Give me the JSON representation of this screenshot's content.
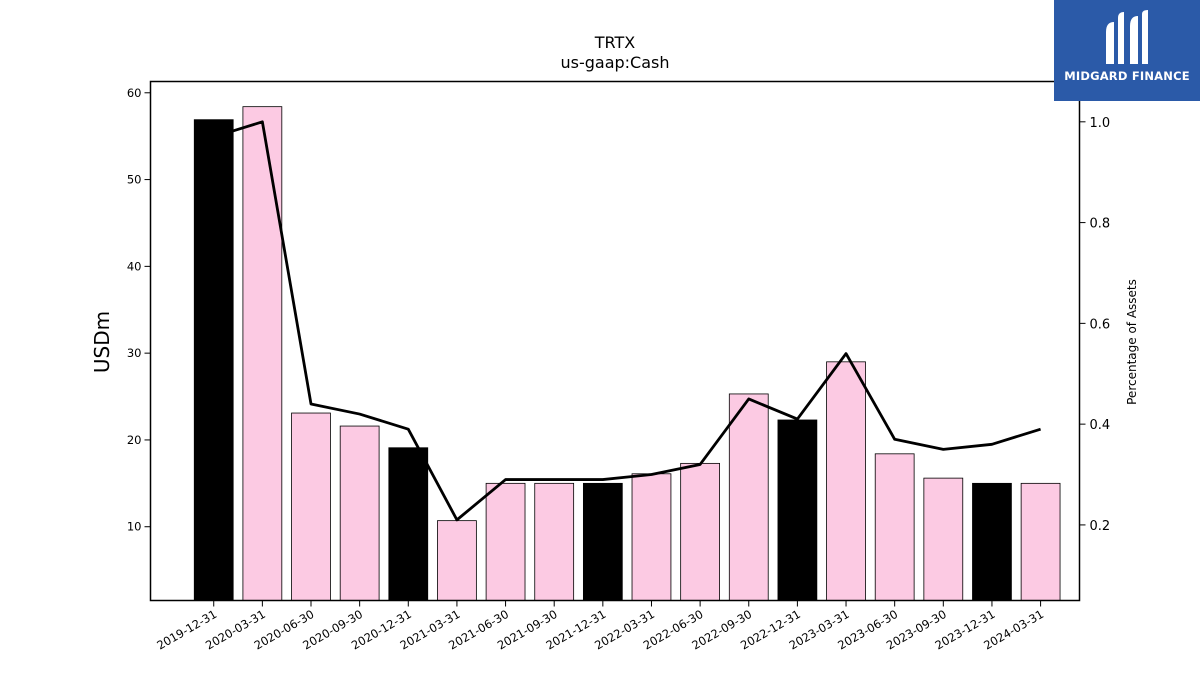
{
  "chart_data": {
    "type": "bar",
    "title": "TRTX",
    "subtitle": "us-gaap:Cash",
    "ylabel": "USDm",
    "y2label": "Percentage of Assets",
    "categories": [
      "2019-12-31",
      "2020-03-31",
      "2020-06-30",
      "2020-09-30",
      "2020-12-31",
      "2021-03-31",
      "2021-06-30",
      "2021-09-30",
      "2021-12-31",
      "2022-03-31",
      "2022-06-30",
      "2022-09-30",
      "2022-12-31",
      "2023-03-31",
      "2023-06-30",
      "2023-09-30",
      "2023-12-31",
      "2024-03-31"
    ],
    "values": [
      56.9,
      58.4,
      23.1,
      21.6,
      19.1,
      10.7,
      15.0,
      15.0,
      15.0,
      16.1,
      17.3,
      25.3,
      22.3,
      29.0,
      18.4,
      15.6,
      15.0,
      15.0
    ],
    "bar_colors": [
      "#000000",
      "#fccae3",
      "#fccae3",
      "#fccae3",
      "#000000",
      "#fccae3",
      "#fccae3",
      "#fccae3",
      "#000000",
      "#fccae3",
      "#fccae3",
      "#fccae3",
      "#000000",
      "#fccae3",
      "#fccae3",
      "#fccae3",
      "#000000",
      "#fccae3"
    ],
    "line_values": [
      0.97,
      1.0,
      0.44,
      0.42,
      0.39,
      0.21,
      0.29,
      0.29,
      0.29,
      0.3,
      0.32,
      0.45,
      0.41,
      0.54,
      0.37,
      0.35,
      0.36,
      0.39
    ],
    "ylim": [
      1.5,
      61.3
    ],
    "y_ticks": [
      10,
      20,
      30,
      40,
      50,
      60
    ],
    "y2lim": [
      0.05,
      1.08
    ],
    "y2_ticks": [
      0.2,
      0.4,
      0.6,
      0.8,
      1.0
    ],
    "y2_tick_labels": [
      "0.2",
      "0.4",
      "0.6",
      "0.8",
      "1.0"
    ]
  },
  "logo": {
    "text": "MIDGARD FINANCE"
  }
}
